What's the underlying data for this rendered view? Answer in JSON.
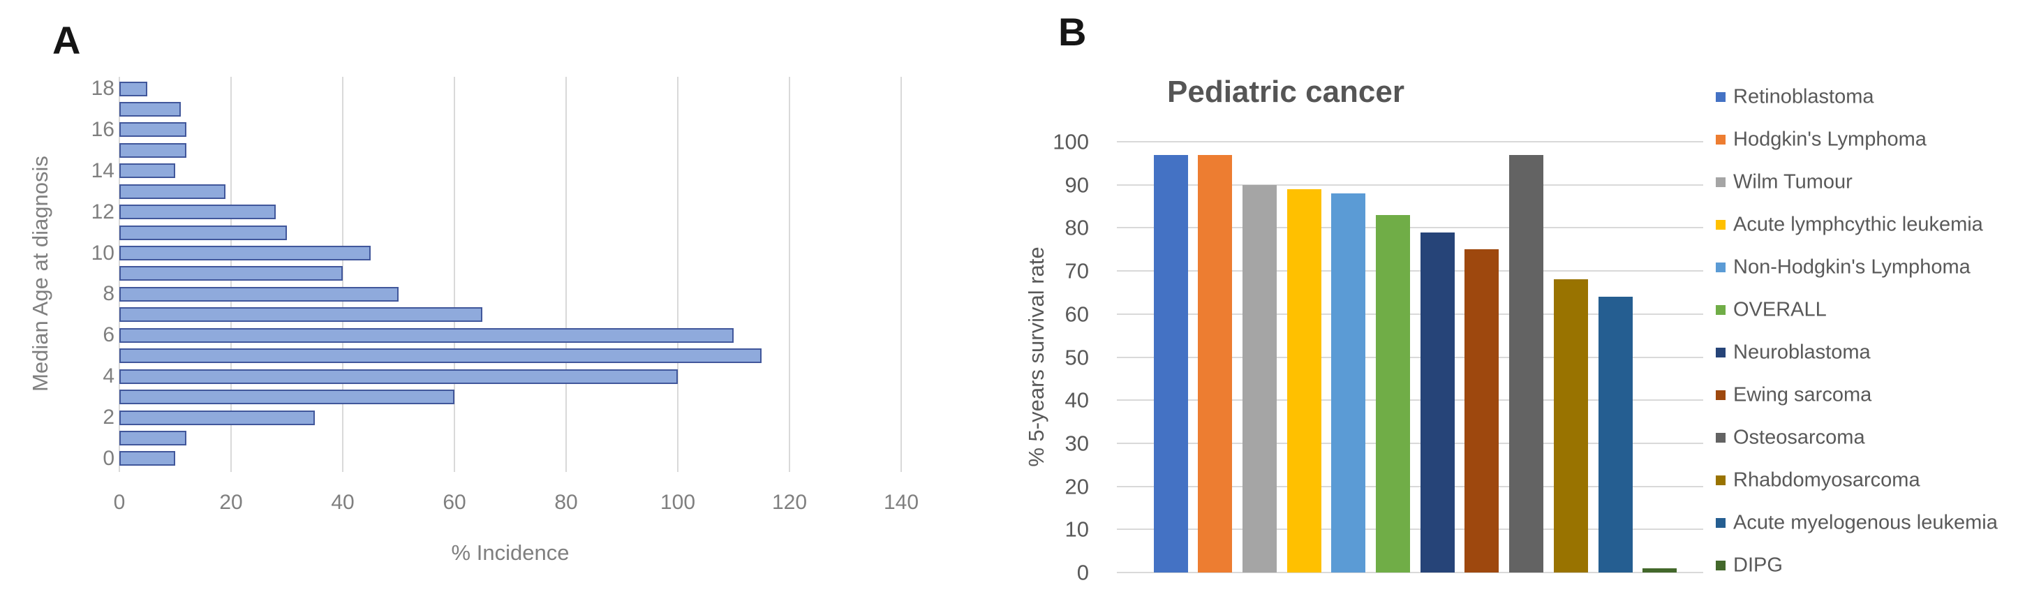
{
  "figure": {
    "panel_a_label": "A",
    "panel_b_label": "B"
  },
  "colors": {
    "gridline": "#D9D9D9",
    "panel_a_axis_text": "#7F7F7F",
    "panel_b_axis_text": "#595959",
    "chart_title_text": "#555555",
    "legend_text": "#595959",
    "panel_label_text": "#151515"
  },
  "chart_data": [
    {
      "id": "incidence-by-age",
      "type": "bar",
      "orientation": "horizontal",
      "title": "",
      "xlabel": "% Incidence",
      "ylabel": "Median Age at diagnosis",
      "xlim": [
        0,
        150
      ],
      "x_ticks": [
        0,
        20,
        40,
        60,
        80,
        100,
        120,
        140
      ],
      "grid": true,
      "bar_fill": "#8FAADC",
      "bar_border": "#41579B",
      "categories": [
        18,
        17,
        16,
        15,
        14,
        13,
        12,
        11,
        10,
        9,
        8,
        7,
        6,
        5,
        4,
        3,
        2,
        1,
        0
      ],
      "labeled_y_ticks": [
        18,
        16,
        14,
        12,
        10,
        8,
        6,
        4,
        2,
        0
      ],
      "values": [
        5,
        11,
        12,
        12,
        10,
        19,
        28,
        30,
        45,
        40,
        50,
        65,
        110,
        115,
        100,
        60,
        35,
        12,
        10
      ]
    },
    {
      "id": "survival-by-cancer",
      "type": "bar",
      "orientation": "vertical",
      "title": "Pediatric cancer",
      "xlabel": "",
      "ylabel": "% 5-years survival rate",
      "ylim": [
        0,
        100
      ],
      "y_ticks": [
        0,
        10,
        20,
        30,
        40,
        50,
        60,
        70,
        80,
        90,
        100
      ],
      "grid": true,
      "legend_position": "right",
      "series": [
        {
          "name": "Retinoblastoma",
          "value": 97,
          "color": "#4472C4"
        },
        {
          "name": "Hodgkin's Lymphoma",
          "value": 97,
          "color": "#ED7D31"
        },
        {
          "name": "Wilm Tumour",
          "value": 90,
          "color": "#A5A5A5"
        },
        {
          "name": "Acute lymphcythic leukemia",
          "value": 89,
          "color": "#FFC000"
        },
        {
          "name": "Non-Hodgkin's Lymphoma",
          "value": 88,
          "color": "#5B9BD5"
        },
        {
          "name": "OVERALL",
          "value": 83,
          "color": "#70AD47"
        },
        {
          "name": "Neuroblastoma",
          "value": 79,
          "color": "#264478"
        },
        {
          "name": "Ewing sarcoma",
          "value": 75,
          "color": "#9E480E"
        },
        {
          "name": "Osteosarcoma",
          "value": 97,
          "color": "#636363"
        },
        {
          "name": "Rhabdomyosarcoma",
          "value": 68,
          "color": "#997300"
        },
        {
          "name": "Acute myelogenous leukemia",
          "value": 64,
          "color": "#255E91"
        },
        {
          "name": "DIPG",
          "value": 1,
          "color": "#43682B"
        }
      ]
    }
  ]
}
